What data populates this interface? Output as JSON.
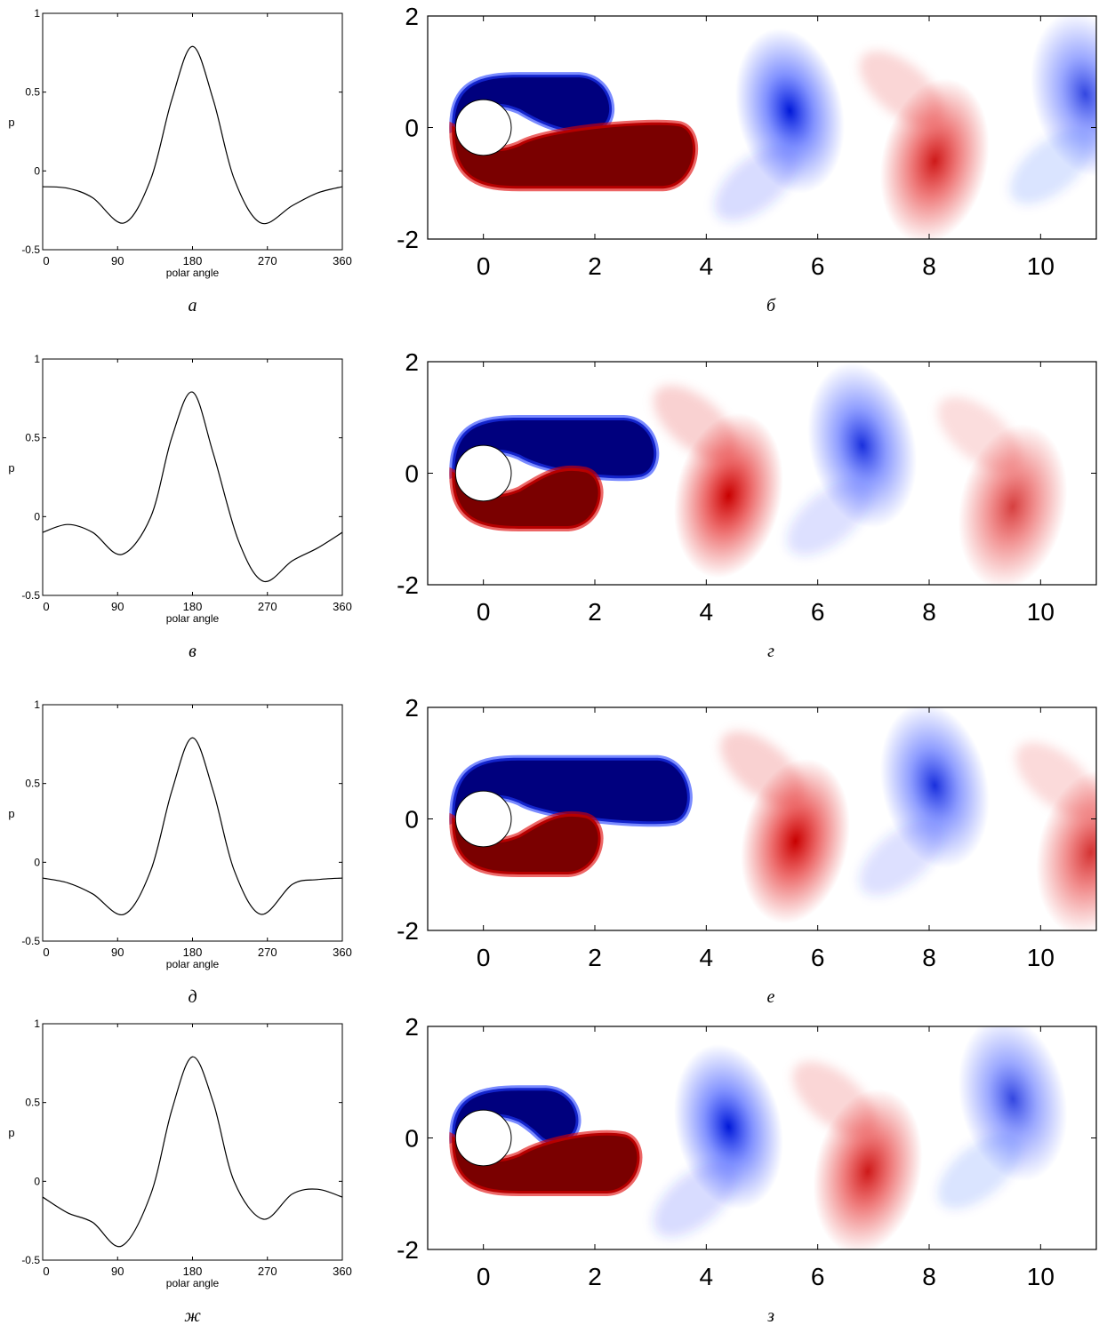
{
  "figure": {
    "rows": [
      {
        "pressure_label": "а",
        "vorticity_label": "б",
        "pressure_chart": {
          "type": "line",
          "xlabel": "polar angle",
          "ylabel": "p",
          "xlim": [
            0,
            360
          ],
          "ylim": [
            -0.5,
            1
          ],
          "xticks": [
            "0",
            "90",
            "180",
            "270",
            "360"
          ],
          "yticks": [
            "-0.5",
            "0",
            "0.5",
            "1"
          ],
          "x": [
            0,
            30,
            60,
            98,
            130,
            155,
            180,
            205,
            230,
            262,
            300,
            330,
            360
          ],
          "y": [
            -0.1,
            -0.11,
            -0.17,
            -0.33,
            -0.05,
            0.45,
            0.79,
            0.45,
            -0.05,
            -0.33,
            -0.22,
            -0.14,
            -0.1
          ]
        },
        "vorticity_map": {
          "type": "heatmap",
          "xlim": [
            -1,
            11
          ],
          "ylim": [
            -2,
            2
          ],
          "xticks": [
            "0",
            "2",
            "4",
            "6",
            "8",
            "10"
          ],
          "yticks": [
            "-2",
            "0",
            "2"
          ],
          "vortices": [
            {
              "sign": "positive",
              "x": 8.1,
              "y": -0.6,
              "strength": 0.9
            },
            {
              "sign": "negative",
              "x": 5.5,
              "y": 0.3,
              "strength": 1.0
            },
            {
              "sign": "negative",
              "x": 10.8,
              "y": 0.6,
              "strength": 0.8
            }
          ],
          "attached_upper": {
            "length": 2.2,
            "top": 0.85
          },
          "attached_lower": {
            "length": 3.7,
            "bottom": -1.0
          }
        }
      },
      {
        "pressure_label": "в",
        "vorticity_label": "г",
        "pressure_chart": {
          "type": "line",
          "xlabel": "polar angle",
          "ylabel": "p",
          "xlim": [
            0,
            360
          ],
          "ylim": [
            -0.5,
            1
          ],
          "xticks": [
            "0",
            "90",
            "180",
            "270",
            "360"
          ],
          "yticks": [
            "-0.5",
            "0",
            "0.5",
            "1"
          ],
          "x": [
            0,
            30,
            60,
            95,
            130,
            155,
            180,
            205,
            235,
            265,
            300,
            330,
            360
          ],
          "y": [
            -0.1,
            -0.05,
            -0.1,
            -0.24,
            0.0,
            0.5,
            0.79,
            0.4,
            -0.15,
            -0.41,
            -0.28,
            -0.2,
            -0.1
          ]
        },
        "vorticity_map": {
          "type": "heatmap",
          "xlim": [
            -1,
            11
          ],
          "ylim": [
            -2,
            2
          ],
          "xticks": [
            "0",
            "2",
            "4",
            "6",
            "8",
            "10"
          ],
          "yticks": [
            "-2",
            "0",
            "2"
          ],
          "vortices": [
            {
              "sign": "positive",
              "x": 4.4,
              "y": -0.4,
              "strength": 1.0
            },
            {
              "sign": "negative",
              "x": 6.8,
              "y": 0.5,
              "strength": 0.9
            },
            {
              "sign": "positive",
              "x": 9.5,
              "y": -0.6,
              "strength": 0.75
            }
          ],
          "attached_upper": {
            "length": 3.0,
            "top": 0.9
          },
          "attached_lower": {
            "length": 2.0,
            "bottom": -0.9
          }
        }
      },
      {
        "pressure_label": "д",
        "vorticity_label": "е",
        "pressure_chart": {
          "type": "line",
          "xlabel": "polar angle",
          "ylabel": "p",
          "xlim": [
            0,
            360
          ],
          "ylim": [
            -0.5,
            1
          ],
          "xticks": [
            "0",
            "90",
            "180",
            "270",
            "360"
          ],
          "yticks": [
            "-0.5",
            "0",
            "0.5",
            "1"
          ],
          "x": [
            0,
            30,
            60,
            98,
            130,
            155,
            180,
            205,
            230,
            262,
            300,
            330,
            360
          ],
          "y": [
            -0.1,
            -0.13,
            -0.2,
            -0.33,
            -0.05,
            0.45,
            0.79,
            0.45,
            -0.05,
            -0.33,
            -0.14,
            -0.11,
            -0.1
          ]
        },
        "vorticity_map": {
          "type": "heatmap",
          "xlim": [
            -1,
            11
          ],
          "ylim": [
            -2,
            2
          ],
          "xticks": [
            "0",
            "2",
            "4",
            "6",
            "8",
            "10"
          ],
          "yticks": [
            "-2",
            "0",
            "2"
          ],
          "vortices": [
            {
              "sign": "positive",
              "x": 5.6,
              "y": -0.4,
              "strength": 1.0
            },
            {
              "sign": "negative",
              "x": 8.1,
              "y": 0.6,
              "strength": 0.9
            },
            {
              "sign": "positive",
              "x": 10.9,
              "y": -0.6,
              "strength": 0.8
            }
          ],
          "attached_upper": {
            "length": 3.6,
            "top": 1.0
          },
          "attached_lower": {
            "length": 2.0,
            "bottom": -0.9
          }
        }
      },
      {
        "pressure_label": "ж",
        "vorticity_label": "з",
        "pressure_chart": {
          "type": "line",
          "xlabel": "polar angle",
          "ylabel": "p",
          "xlim": [
            0,
            360
          ],
          "ylim": [
            -0.5,
            1
          ],
          "xticks": [
            "0",
            "90",
            "180",
            "270",
            "360"
          ],
          "yticks": [
            "-0.5",
            "0",
            "0.5",
            "1"
          ],
          "x": [
            0,
            30,
            60,
            95,
            130,
            155,
            180,
            205,
            230,
            265,
            300,
            330,
            360
          ],
          "y": [
            -0.1,
            -0.2,
            -0.26,
            -0.41,
            -0.08,
            0.45,
            0.79,
            0.5,
            0.0,
            -0.24,
            -0.08,
            -0.05,
            -0.1
          ]
        },
        "vorticity_map": {
          "type": "heatmap",
          "xlim": [
            -1,
            11
          ],
          "ylim": [
            -2,
            2
          ],
          "xticks": [
            "0",
            "2",
            "4",
            "6",
            "8",
            "10"
          ],
          "yticks": [
            "-2",
            "0",
            "2"
          ],
          "vortices": [
            {
              "sign": "negative",
              "x": 4.4,
              "y": 0.2,
              "strength": 1.0
            },
            {
              "sign": "positive",
              "x": 6.9,
              "y": -0.6,
              "strength": 0.9
            },
            {
              "sign": "negative",
              "x": 9.5,
              "y": 0.7,
              "strength": 0.8
            }
          ],
          "attached_upper": {
            "length": 1.6,
            "top": 0.8
          },
          "attached_lower": {
            "length": 2.7,
            "bottom": -0.9
          }
        }
      }
    ]
  }
}
